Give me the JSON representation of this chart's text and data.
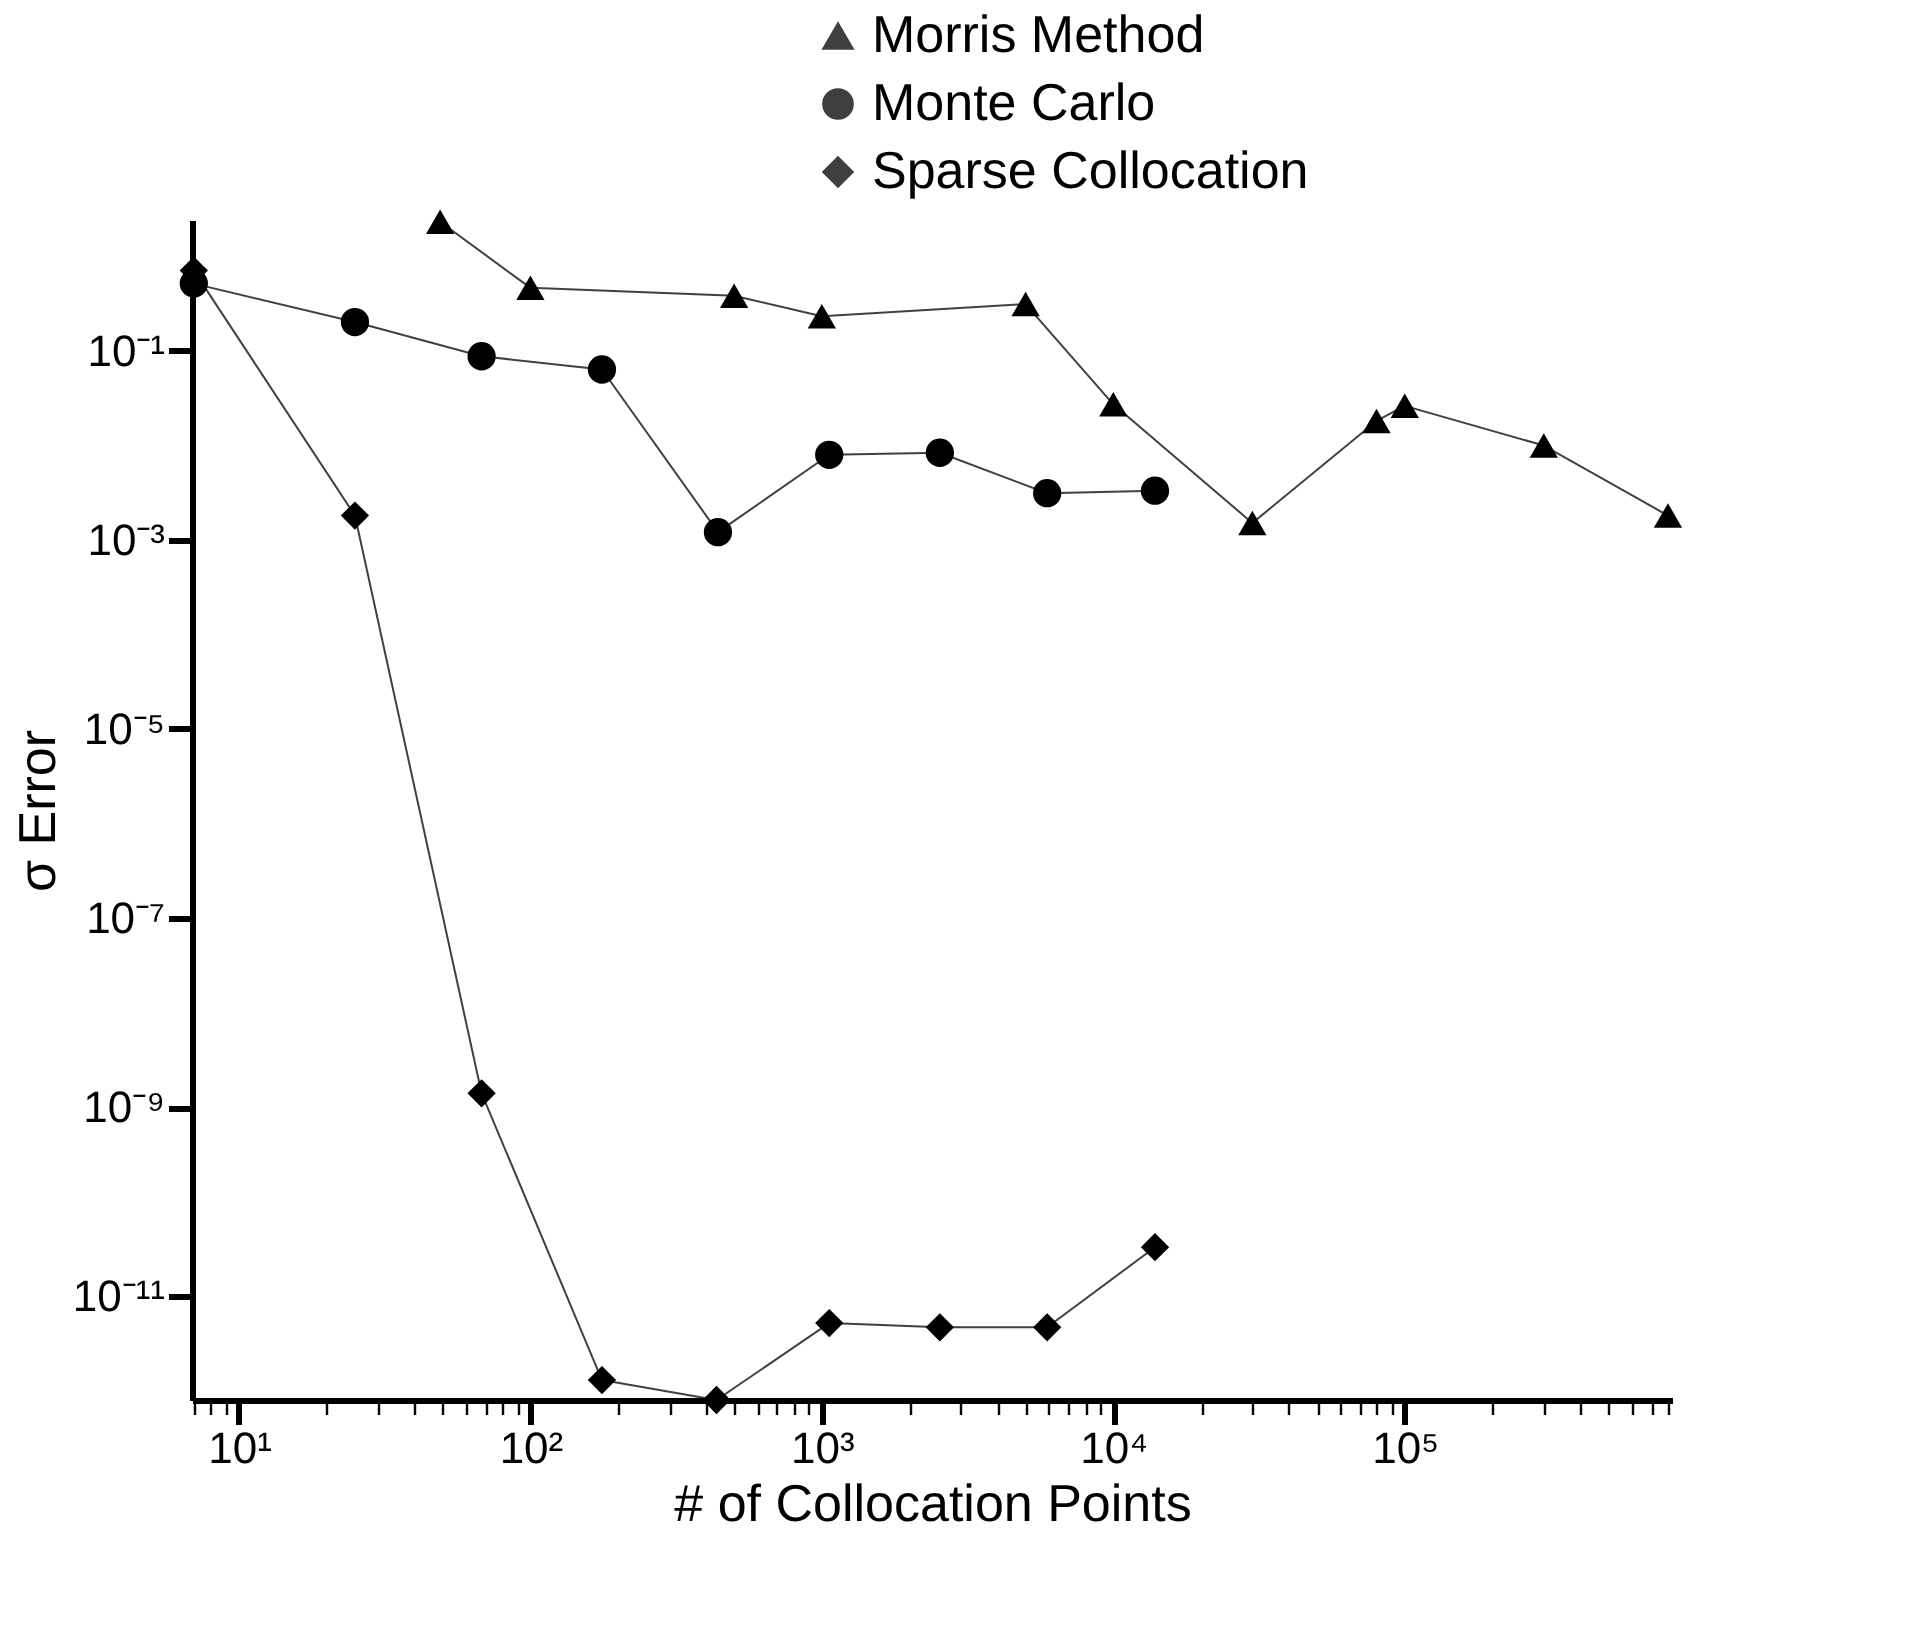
{
  "chart_data": {
    "type": "line",
    "xlabel": "# of Collocation Points",
    "ylabel": "σ Error",
    "log": "xy",
    "grid": false,
    "legend": "top right",
    "line_style": "solid",
    "xlim": [
      6.9,
      826000
    ],
    "ylim": [
      8e-13,
      2.4
    ],
    "xticks": [
      {
        "value": 7,
        "label": null
      },
      {
        "value": 8,
        "label": null
      },
      {
        "value": 9,
        "label": null
      },
      {
        "value": 10,
        "label": "10¹"
      },
      {
        "value": 20,
        "label": null
      },
      {
        "value": 30,
        "label": null
      },
      {
        "value": 40,
        "label": null
      },
      {
        "value": 50,
        "label": null
      },
      {
        "value": 60,
        "label": null
      },
      {
        "value": 70,
        "label": null
      },
      {
        "value": 80,
        "label": null
      },
      {
        "value": 90,
        "label": null
      },
      {
        "value": 100,
        "label": "10²"
      },
      {
        "value": 200,
        "label": null
      },
      {
        "value": 300,
        "label": null
      },
      {
        "value": 400,
        "label": null
      },
      {
        "value": 500,
        "label": null
      },
      {
        "value": 600,
        "label": null
      },
      {
        "value": 700,
        "label": null
      },
      {
        "value": 800,
        "label": null
      },
      {
        "value": 900,
        "label": null
      },
      {
        "value": 1000,
        "label": "10³"
      },
      {
        "value": 2000,
        "label": null
      },
      {
        "value": 3000,
        "label": null
      },
      {
        "value": 4000,
        "label": null
      },
      {
        "value": 5000,
        "label": null
      },
      {
        "value": 6000,
        "label": null
      },
      {
        "value": 7000,
        "label": null
      },
      {
        "value": 8000,
        "label": null
      },
      {
        "value": 9000,
        "label": null
      },
      {
        "value": 10000,
        "label": "10⁴"
      },
      {
        "value": 20000,
        "label": null
      },
      {
        "value": 30000,
        "label": null
      },
      {
        "value": 40000,
        "label": null
      },
      {
        "value": 50000,
        "label": null
      },
      {
        "value": 60000,
        "label": null
      },
      {
        "value": 70000,
        "label": null
      },
      {
        "value": 80000,
        "label": null
      },
      {
        "value": 90000,
        "label": null
      },
      {
        "value": 100000,
        "label": "10⁵"
      },
      {
        "value": 200000,
        "label": null
      },
      {
        "value": 300000,
        "label": null
      },
      {
        "value": 400000,
        "label": null
      },
      {
        "value": 500000,
        "label": null
      },
      {
        "value": 600000,
        "label": null
      },
      {
        "value": 700000,
        "label": null
      },
      {
        "value": 800000,
        "label": null
      }
    ],
    "yticks": [
      {
        "value": 0.1,
        "label": "10⁻¹"
      },
      {
        "value": 0.001,
        "label": "10⁻³"
      },
      {
        "value": 1e-05,
        "label": "10⁻⁵"
      },
      {
        "value": 1e-07,
        "label": "10⁻⁷"
      },
      {
        "value": 1e-09,
        "label": "10⁻⁹"
      },
      {
        "value": 1e-11,
        "label": "10⁻¹¹"
      }
    ],
    "series": [
      {
        "name": "Morris Method",
        "color": "#000000",
        "marker": "triangle",
        "x": [
          49,
          100,
          500,
          1000,
          5000,
          10000,
          30000,
          80000,
          100000,
          300000,
          800000
        ],
        "values": [
          2.3,
          0.46,
          0.38,
          0.23,
          0.31,
          0.027,
          0.0015,
          0.018,
          0.026,
          0.0099,
          0.0018
        ]
      },
      {
        "name": "Monte Carlo",
        "color": "#000000",
        "marker": "circle",
        "x": [
          7,
          25,
          68,
          176,
          440,
          1060,
          2540,
          5930,
          13900
        ],
        "values": [
          0.51,
          0.2,
          0.087,
          0.063,
          0.0012,
          0.0079,
          0.0083,
          0.0031,
          0.0033
        ]
      },
      {
        "name": "Sparse Collocation",
        "color": "#000000",
        "marker": "diamond",
        "x": [
          7,
          25,
          68,
          176,
          435,
          1060,
          2540,
          5930,
          13900
        ],
        "values": [
          0.7,
          0.0018,
          1.4e-09,
          1.3e-12,
          8e-13,
          5.2e-12,
          4.7e-12,
          4.7e-12,
          3.3e-11
        ]
      }
    ]
  }
}
